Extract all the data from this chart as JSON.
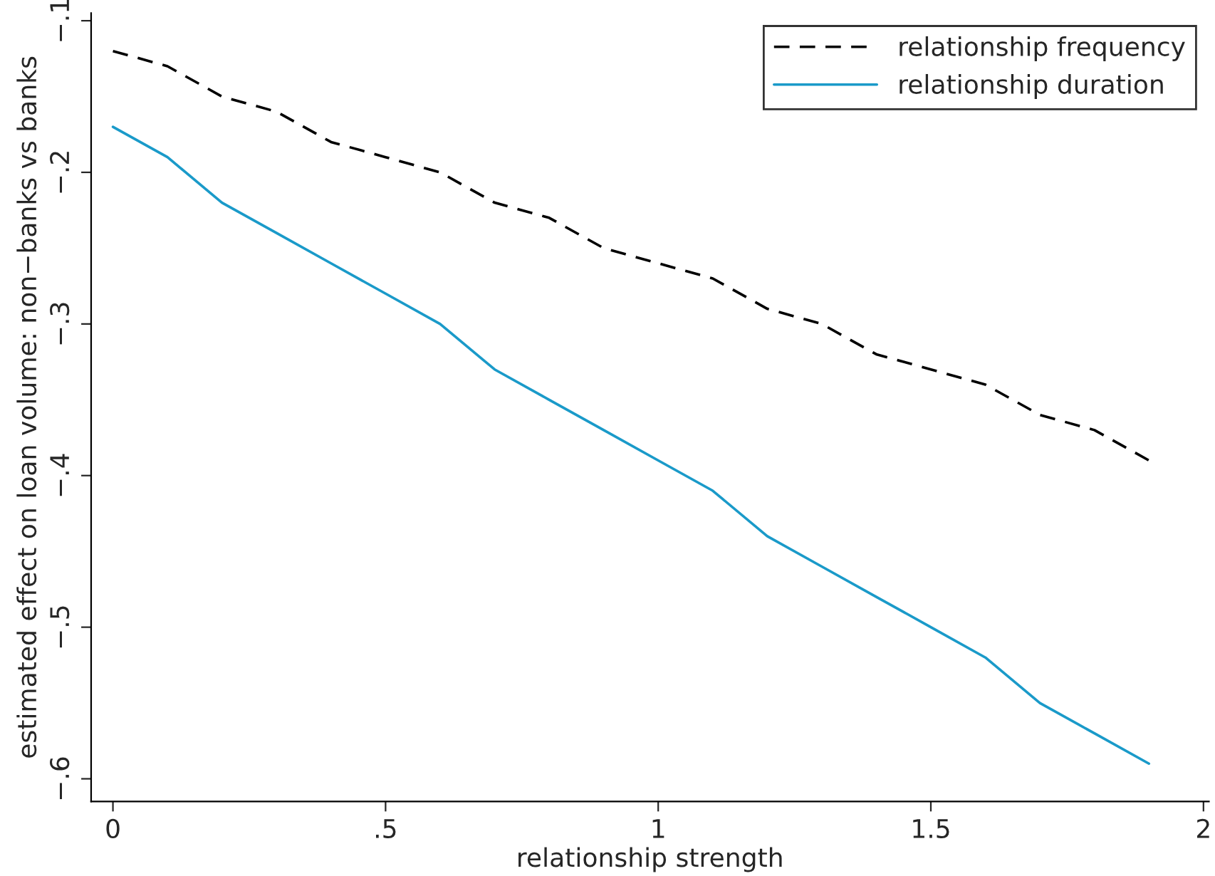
{
  "chart_data": {
    "type": "line",
    "xlabel": "relationship strength",
    "ylabel": "estimated effect on loan volume: non−banks vs banks",
    "x": [
      0,
      0.1,
      0.2,
      0.3,
      0.4,
      0.5,
      0.6,
      0.7,
      0.8,
      0.9,
      1.0,
      1.1,
      1.2,
      1.3,
      1.4,
      1.5,
      1.6,
      1.7,
      1.8,
      1.9
    ],
    "series": [
      {
        "name": "relationship frequency",
        "color": "#000000",
        "line_style": "dashed",
        "values": [
          -0.12,
          -0.13,
          -0.15,
          -0.16,
          -0.18,
          -0.19,
          -0.2,
          -0.22,
          -0.23,
          -0.25,
          -0.26,
          -0.27,
          -0.29,
          -0.3,
          -0.32,
          -0.33,
          -0.34,
          -0.36,
          -0.37,
          -0.39
        ]
      },
      {
        "name": "relationship duration",
        "color": "#1a9ac9",
        "line_style": "solid",
        "values": [
          -0.17,
          -0.19,
          -0.22,
          -0.24,
          -0.26,
          -0.28,
          -0.3,
          -0.33,
          -0.35,
          -0.37,
          -0.39,
          -0.41,
          -0.44,
          -0.46,
          -0.48,
          -0.5,
          -0.52,
          -0.55,
          -0.57,
          -0.59
        ]
      }
    ],
    "xlim": [
      -0.04,
      2.01
    ],
    "ylim": [
      -0.615,
      -0.095
    ],
    "xticks": [
      0,
      {
        "value": 0.5,
        "label": ".5"
      },
      1,
      1.5,
      2
    ],
    "yticks": [
      {
        "value": -0.6,
        "label": "−.6"
      },
      {
        "value": -0.5,
        "label": "−.5"
      },
      {
        "value": -0.4,
        "label": "−.4"
      },
      {
        "value": -0.3,
        "label": "−.3"
      },
      {
        "value": -0.2,
        "label": "−.2"
      },
      {
        "value": -0.1,
        "label": "−.1"
      }
    ],
    "grid": false,
    "legend": "top right",
    "marker": "none"
  }
}
